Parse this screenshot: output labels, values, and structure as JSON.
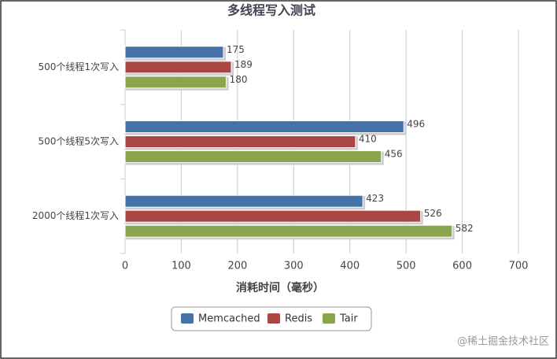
{
  "chart_data": {
    "type": "hbar",
    "title": "多线程写入测试",
    "categories": [
      "500个线程1次写入",
      "500个线程5次写入",
      "2000个线程1次写入"
    ],
    "series": [
      {
        "name": "Memcached",
        "color": "#4572a7",
        "values": [
          175,
          496,
          423
        ]
      },
      {
        "name": "Redis",
        "color": "#aa4643",
        "values": [
          189,
          410,
          526
        ]
      },
      {
        "name": "Tair",
        "color": "#89a54e",
        "values": [
          180,
          456,
          582
        ]
      }
    ],
    "xlabel": "消耗时间（毫秒）",
    "xlim": [
      0,
      700
    ],
    "xticks": [
      0,
      100,
      200,
      300,
      400,
      500,
      600,
      700
    ],
    "grid": true,
    "legend": "bottom",
    "watermark": "@稀土掘金技术社区"
  }
}
